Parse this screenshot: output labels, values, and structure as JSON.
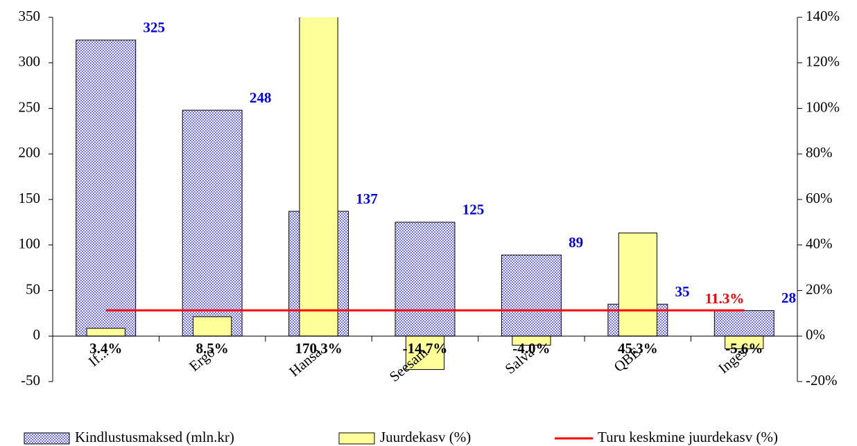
{
  "chart_data": {
    "type": "bar",
    "categories": [
      "If...",
      "Ergo",
      "Hansa",
      "Seesam",
      "Salva",
      "QBE",
      "Inges"
    ],
    "ylim": [
      -50,
      350
    ],
    "yticks": [
      -50,
      0,
      50,
      100,
      150,
      200,
      250,
      300,
      350
    ],
    "y2lim": [
      -20,
      140
    ],
    "y2ticks": [
      {
        "value": -20,
        "label": "-20%"
      },
      {
        "value": 0,
        "label": "0%"
      },
      {
        "value": 20,
        "label": "20%"
      },
      {
        "value": 40,
        "label": "40%"
      },
      {
        "value": 60,
        "label": "60%"
      },
      {
        "value": 80,
        "label": "80%"
      },
      {
        "value": 100,
        "label": "100%"
      },
      {
        "value": 120,
        "label": "120%"
      },
      {
        "value": 140,
        "label": "140%"
      }
    ],
    "series": [
      {
        "name": "Kindlustusmaksed (mln.kr)",
        "type": "bar",
        "color": "#7070ee",
        "values": [
          325,
          248,
          137,
          125,
          89,
          35,
          28
        ]
      },
      {
        "name": "Juurdekasv (%)",
        "type": "bar",
        "axis": "y2",
        "color": "#ffff99",
        "values": [
          3.4,
          8.5,
          170.3,
          -14.7,
          -4.0,
          45.3,
          -5.6
        ],
        "value_labels": [
          "3.4%",
          "8.5%",
          "170.3%",
          "-14.7%",
          "-4.0%",
          "45.3%",
          "-5.6%"
        ]
      },
      {
        "name": "Turu keskmine juurdekasv (%)",
        "type": "line",
        "axis": "y2",
        "color": "#ff0000",
        "values": [
          11.3,
          11.3,
          11.3,
          11.3,
          11.3,
          11.3,
          11.3
        ],
        "value_labels": [
          null,
          null,
          null,
          null,
          null,
          null,
          "11.3%"
        ]
      }
    ]
  }
}
